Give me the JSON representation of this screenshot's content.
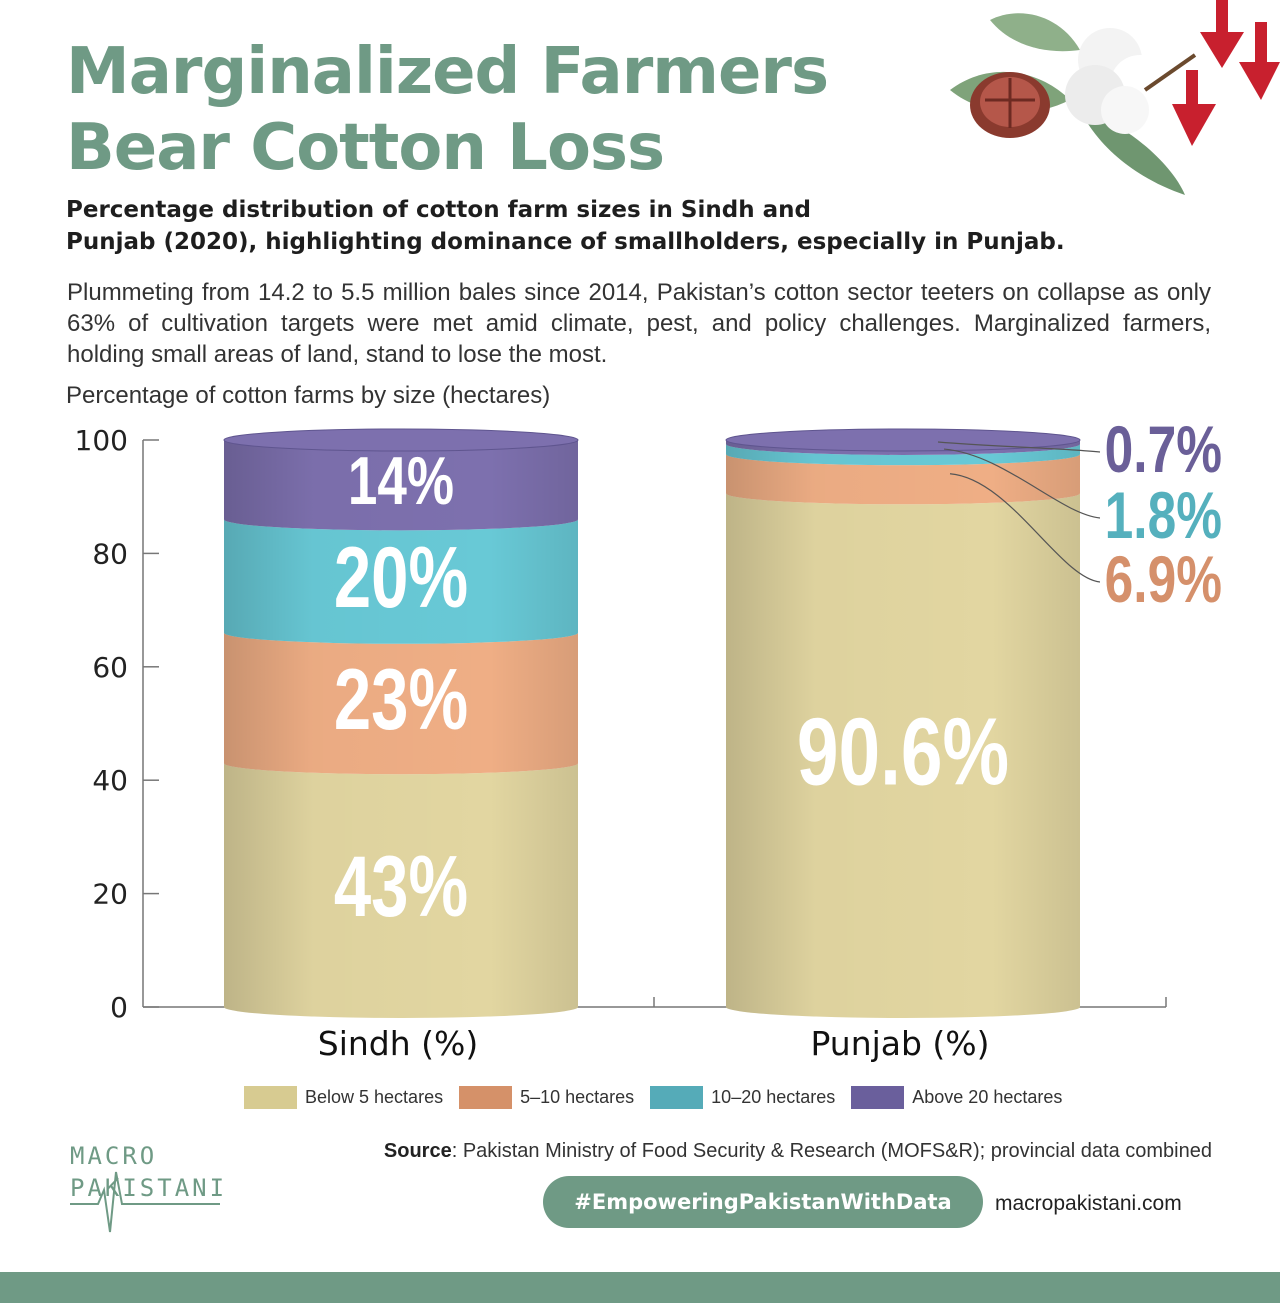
{
  "header": {
    "title_line1": "Marginalized Farmers",
    "title_line2": "Bear Cotton Loss",
    "subtitle_line1": "Percentage distribution of cotton farm sizes in Sindh and",
    "subtitle_line2": "Punjab (2020), highlighting dominance of smallholders, especially in Punjab.",
    "description": "Plummeting from 14.2 to 5.5 million bales since 2014, Pakistan’s cotton sector teeters on collapse as only 63% of cultivation targets were met amid climate, pest, and policy challenges. Marginalized farmers, holding small areas of land, stand to lose the most."
  },
  "chart_data": {
    "type": "bar",
    "stacked": true,
    "title": "Percentage of cotton farms by size (hectares)",
    "categories": [
      "Sindh (%)",
      "Punjab (%)"
    ],
    "ylim": [
      0,
      100
    ],
    "yticks": [
      0,
      20,
      40,
      60,
      80,
      100
    ],
    "series": [
      {
        "name": "Below 5 hectares",
        "values": [
          43,
          90.6
        ],
        "labels": [
          "43%",
          "90.6%"
        ],
        "color": "#e2d6a1"
      },
      {
        "name": "5–10 hectares",
        "values": [
          23,
          6.9
        ],
        "labels": [
          "23%",
          "6.9%"
        ],
        "color": "#efae85"
      },
      {
        "name": "10–20 hectares",
        "values": [
          20,
          1.8
        ],
        "labels": [
          "20%",
          "1.8%"
        ],
        "color": "#68c9d6"
      },
      {
        "name": "Above 20 hectares",
        "values": [
          14,
          0.7
        ],
        "labels": [
          "14%",
          "0.7%"
        ],
        "color": "#7d70ae"
      }
    ],
    "callout_colors": [
      "#d5906b",
      "#55b0bd",
      "#6a5f98"
    ],
    "legend_position": "bottom"
  },
  "legend_colors": [
    "#d7cb91",
    "#d59169",
    "#55abb8",
    "#6a5f9c"
  ],
  "footer": {
    "source_label": "Source",
    "source_text": ": Pakistan Ministry of Food Security & Research (MOFS&R); provincial data combined",
    "hashtag": "#EmpoweringPakistanWithData",
    "website": "macropakistani.com",
    "logo_line1": "MACRO",
    "logo_line2": "PAKISTANI"
  },
  "decoration": {
    "image_icon": "cotton-boll-with-leaves-icon",
    "arrow_icon": "down-arrow-icon",
    "arrow_color": "#c8202e"
  }
}
